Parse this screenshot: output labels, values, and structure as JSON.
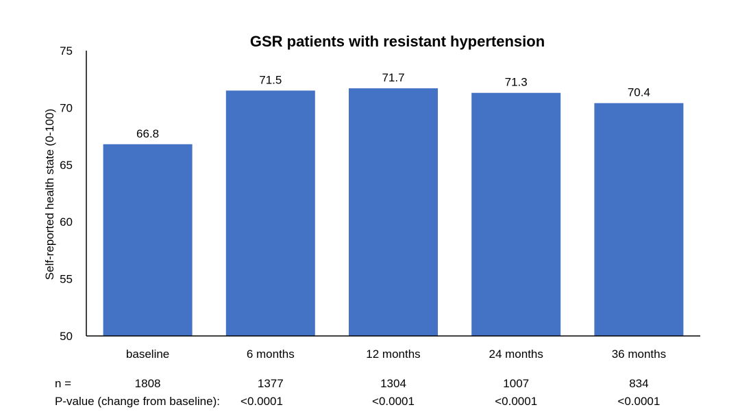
{
  "chart_data": {
    "type": "bar",
    "title": "GSR patients with resistant hypertension",
    "xlabel": "",
    "ylabel": "Self-reported health state (0-100)",
    "ylim": [
      50,
      75
    ],
    "yticks": [
      50,
      55,
      60,
      65,
      70,
      75
    ],
    "grid": false,
    "bar_color": "#4472C4",
    "categories": [
      "baseline",
      "6 months",
      "12 months",
      "24 months",
      "36 months"
    ],
    "values": [
      66.8,
      71.5,
      71.7,
      71.3,
      70.4
    ],
    "data_labels": [
      "66.8",
      "71.5",
      "71.7",
      "71.3",
      "70.4"
    ]
  },
  "table": {
    "n_label": "n =",
    "n_values": [
      "1808",
      "1377",
      "1304",
      "1007",
      "834"
    ],
    "p_label": "P-value (change from baseline):",
    "p_values": [
      "<0.0001",
      "<0.0001",
      "<0.0001",
      "<0.0001"
    ]
  }
}
